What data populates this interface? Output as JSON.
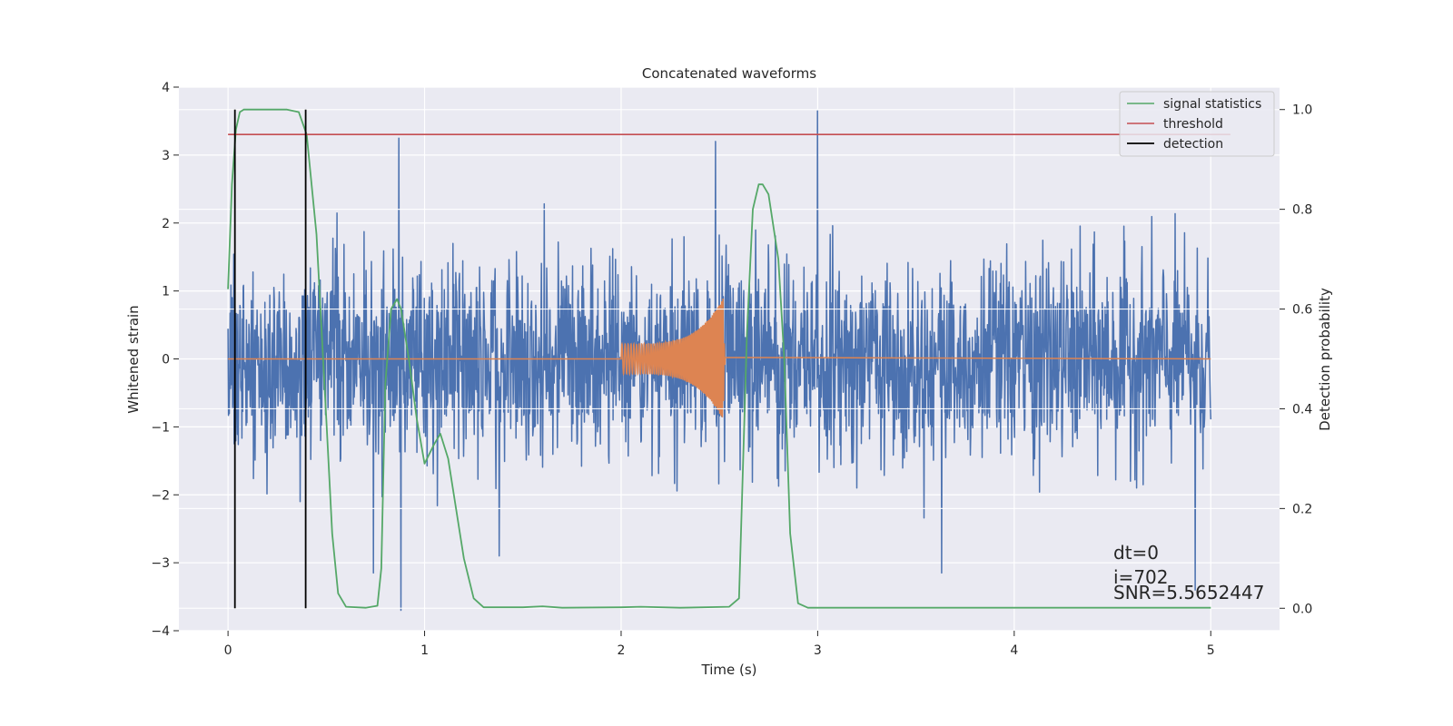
{
  "chart_data": {
    "type": "line",
    "title": "Concatenated waveforms",
    "xlabel": "Time (s)",
    "ylabel": "Whitened strain",
    "y2label": "Detection probability",
    "xlim": [
      -0.25,
      5.35
    ],
    "ylim": [
      -4.0,
      4.0
    ],
    "y2lim": [
      -0.045,
      1.045
    ],
    "xticks": [
      0,
      1,
      2,
      3,
      4,
      5
    ],
    "yticks": [
      -4,
      -3,
      -2,
      -1,
      0,
      1,
      2,
      3,
      4
    ],
    "y2ticks": [
      0.0,
      0.2,
      0.4,
      0.6,
      0.8,
      1.0
    ],
    "grid": true,
    "legend_position": "top-right",
    "colors": {
      "background": "#eaeaf2",
      "grid": "#ffffff",
      "strain": "#4c72b0",
      "injection": "#dd8452",
      "signal_statistics": "#55a868",
      "threshold": "#c44e52",
      "detection": "#000000"
    },
    "series": [
      {
        "name": "signal statistics",
        "axis": "right",
        "x": [
          0.0,
          0.02,
          0.04,
          0.06,
          0.08,
          0.1,
          0.2,
          0.3,
          0.36,
          0.4,
          0.45,
          0.5,
          0.53,
          0.56,
          0.6,
          0.7,
          0.76,
          0.78,
          0.8,
          0.83,
          0.86,
          0.88,
          0.92,
          0.96,
          1.0,
          1.05,
          1.08,
          1.12,
          1.2,
          1.25,
          1.3,
          1.5,
          1.6,
          1.7,
          2.0,
          2.1,
          2.3,
          2.55,
          2.6,
          2.64,
          2.67,
          2.7,
          2.72,
          2.75,
          2.8,
          2.83,
          2.86,
          2.9,
          2.95,
          3.5,
          4.0,
          5.0
        ],
        "y": [
          0.64,
          0.85,
          0.96,
          0.995,
          1.0,
          1.0,
          1.0,
          1.0,
          0.995,
          0.95,
          0.75,
          0.38,
          0.15,
          0.03,
          0.003,
          0.001,
          0.005,
          0.08,
          0.45,
          0.6,
          0.62,
          0.6,
          0.5,
          0.38,
          0.29,
          0.33,
          0.35,
          0.3,
          0.1,
          0.02,
          0.002,
          0.002,
          0.004,
          0.001,
          0.002,
          0.003,
          0.001,
          0.003,
          0.02,
          0.55,
          0.8,
          0.85,
          0.85,
          0.83,
          0.7,
          0.5,
          0.15,
          0.01,
          0.001,
          0.001,
          0.001,
          0.001
        ]
      },
      {
        "name": "threshold",
        "axis": "right",
        "x": [
          0.0,
          5.1
        ],
        "y": [
          0.95,
          0.95
        ]
      },
      {
        "name": "detection",
        "axis": "right",
        "segments": [
          {
            "x": 0.035,
            "y0": 0.0,
            "y1": 1.0
          },
          {
            "x": 0.395,
            "y0": 0.0,
            "y1": 1.0
          }
        ]
      }
    ],
    "unlabeled_series": [
      {
        "role": "whitened strain noise",
        "axis": "left",
        "x_range": [
          0.0,
          5.0
        ],
        "approx_std": 0.72,
        "spikes": [
          [
            0.87,
            3.25
          ],
          [
            0.88,
            -3.7
          ],
          [
            2.48,
            3.2
          ],
          [
            3.0,
            3.65
          ],
          [
            4.92,
            -3.4
          ],
          [
            1.38,
            -2.9
          ],
          [
            0.74,
            -3.15
          ],
          [
            3.63,
            -3.15
          ]
        ]
      },
      {
        "role": "injected waveform",
        "axis": "left",
        "x_range": [
          2.0,
          2.53
        ],
        "start_amplitude": 0.22,
        "peak_amplitude": 0.9,
        "peak_time": 2.52
      }
    ],
    "annotations": [
      "dt=0",
      "i=702",
      "SNR=5.5652447"
    ]
  }
}
